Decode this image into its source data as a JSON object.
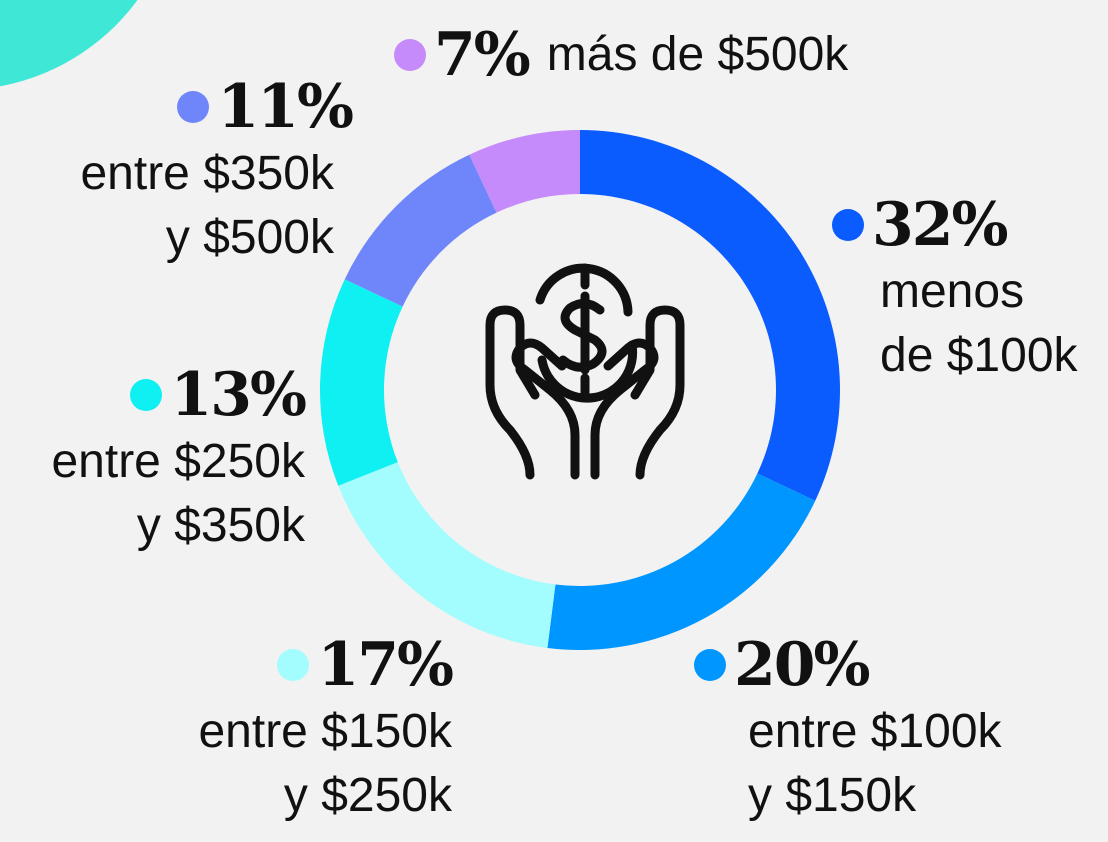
{
  "chart_data": {
    "type": "donut",
    "categories": [
      "menos\nde $100k",
      "entre $100k\ny $150k",
      "entre $150k\ny $250k",
      "entre $250k\ny $350k",
      "entre $350k\ny $500k",
      "más de $500k"
    ],
    "values": [
      32,
      20,
      17,
      13,
      11,
      7
    ],
    "value_labels": [
      "32%",
      "20%",
      "17%",
      "13%",
      "11%",
      "7%"
    ],
    "colors": [
      "#0a5cff",
      "#0096ff",
      "#a3fcfd",
      "#0ff0f2",
      "#6f86fb",
      "#c68bfa"
    ]
  }
}
